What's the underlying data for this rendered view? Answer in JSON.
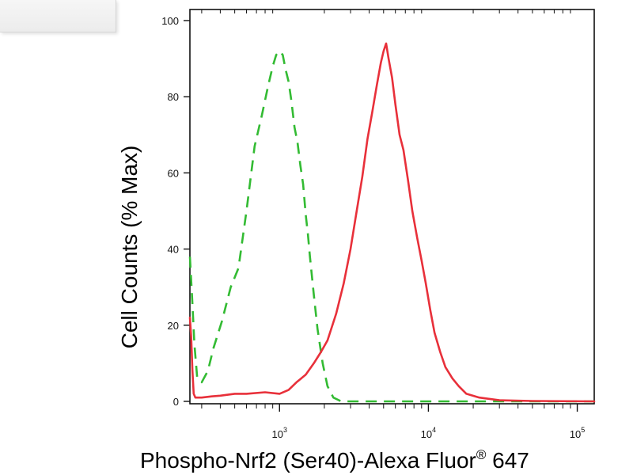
{
  "chart_data": {
    "type": "line",
    "title": "",
    "xlabel": {
      "prefix": "Phospho-Nrf2 (Ser40)-Alexa Fluor",
      "superscript": "®",
      "suffix": " 647"
    },
    "ylabel": "Cell Counts (% Max)",
    "x_scale": "log",
    "x_ticks": [
      {
        "value": 1000,
        "base": "10",
        "exp": "3"
      },
      {
        "value": 10000,
        "base": "10",
        "exp": "4"
      },
      {
        "value": 100000,
        "base": "10",
        "exp": "5"
      }
    ],
    "y_ticks": [
      "0",
      "20",
      "40",
      "60",
      "80",
      "100"
    ],
    "xlim": [
      250,
      130000
    ],
    "ylim": [
      0,
      100
    ],
    "grid": false,
    "series": [
      {
        "style": "dashed",
        "color": "#33bb33",
        "x": [
          250,
          258,
          268,
          280,
          300,
          330,
          360,
          410,
          470,
          530,
          600,
          680,
          760,
          840,
          900,
          950,
          1000,
          1050,
          1100,
          1150,
          1200,
          1260,
          1320,
          1380,
          1440,
          1500,
          1550,
          1600,
          1700,
          1800,
          1950,
          2100,
          2300,
          2600,
          3000,
          5000,
          10000,
          30000,
          130000
        ],
        "y": [
          38,
          28,
          15,
          6,
          5,
          8,
          14,
          21,
          30,
          35,
          50,
          67,
          75,
          83,
          88,
          91,
          92,
          91,
          87,
          84,
          79,
          72,
          68,
          62,
          57,
          49,
          44,
          38,
          28,
          19,
          10,
          4,
          1,
          0,
          0,
          0,
          0,
          0,
          0
        ]
      },
      {
        "style": "solid",
        "color": "#e8303a",
        "x": [
          250,
          255,
          260,
          265,
          272,
          285,
          300,
          350,
          400,
          500,
          600,
          800,
          1000,
          1150,
          1300,
          1500,
          1700,
          1900,
          2100,
          2400,
          2700,
          3000,
          3300,
          3600,
          3900,
          4200,
          4500,
          4800,
          5000,
          5200,
          5400,
          5700,
          6000,
          6400,
          6800,
          7300,
          7800,
          8400,
          9000,
          9600,
          10300,
          11000,
          12000,
          13000,
          14500,
          16000,
          18000,
          22000,
          30000,
          50000,
          130000
        ],
        "y": [
          22,
          17,
          8,
          2,
          1,
          1,
          1,
          1.3,
          1.5,
          2,
          2,
          2.4,
          2,
          3,
          5,
          7,
          10,
          13,
          16,
          23,
          31,
          40,
          50,
          59,
          69,
          76,
          83,
          89,
          92,
          94,
          90,
          85,
          78,
          70,
          66,
          58,
          50,
          43,
          37,
          31,
          24,
          18,
          13,
          9,
          6,
          4,
          2,
          1,
          0.3,
          0.1,
          0
        ]
      }
    ]
  }
}
